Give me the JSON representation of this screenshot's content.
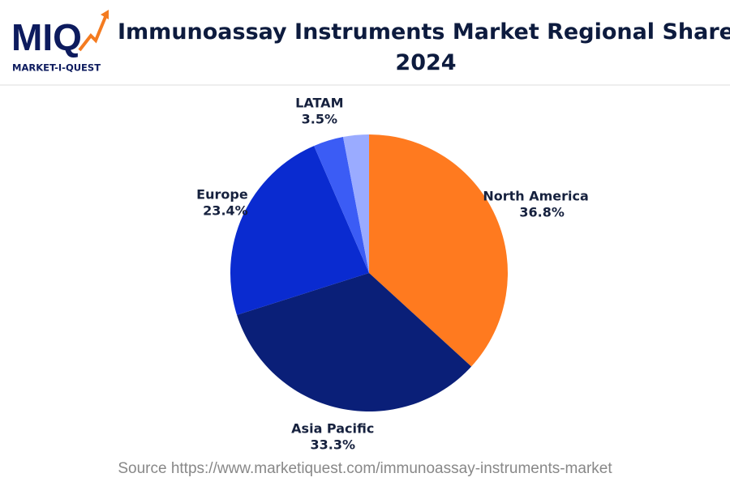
{
  "brand": {
    "logo": "MIQ",
    "name": "MARKET-I-QUEST"
  },
  "chart_data": {
    "type": "pie",
    "title": "Immunoassay Instruments Market Regional Share 2024",
    "categories": [
      "North America",
      "Asia Pacific",
      "Europe",
      "LATAM",
      null
    ],
    "values": [
      36.8,
      33.3,
      23.4,
      3.5,
      3.0
    ],
    "value_labels": [
      "36.8%",
      "33.3%",
      "23.4%",
      "3.5%",
      null
    ],
    "colors": [
      "#ff7a1f",
      "#0a1f78",
      "#0a2bd0",
      "#3b5cf5",
      "#9aabff"
    ],
    "source": "Source https://www.marketiquest.com/immunoassay-instruments-market"
  }
}
